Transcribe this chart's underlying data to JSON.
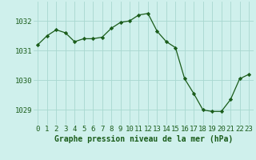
{
  "x": [
    0,
    1,
    2,
    3,
    4,
    5,
    6,
    7,
    8,
    9,
    10,
    11,
    12,
    13,
    14,
    15,
    16,
    17,
    18,
    19,
    20,
    21,
    22,
    23
  ],
  "y": [
    1031.2,
    1031.5,
    1031.7,
    1031.6,
    1031.3,
    1031.4,
    1031.4,
    1031.45,
    1031.75,
    1031.95,
    1032.0,
    1032.2,
    1032.25,
    1031.65,
    1031.3,
    1031.1,
    1030.05,
    1029.55,
    1029.0,
    1028.95,
    1028.95,
    1029.35,
    1030.05,
    1030.2
  ],
  "line_color": "#1a5c1a",
  "marker": "D",
  "marker_size": 2.2,
  "bg_color": "#cff0ec",
  "grid_color": "#a8d8d0",
  "xlabel": "Graphe pression niveau de la mer (hPa)",
  "xlabel_fontsize": 7.0,
  "tick_fontsize": 6.5,
  "yticks": [
    1029,
    1030,
    1031,
    1032
  ],
  "ylim": [
    1028.5,
    1032.65
  ],
  "xlim": [
    -0.5,
    23.5
  ]
}
